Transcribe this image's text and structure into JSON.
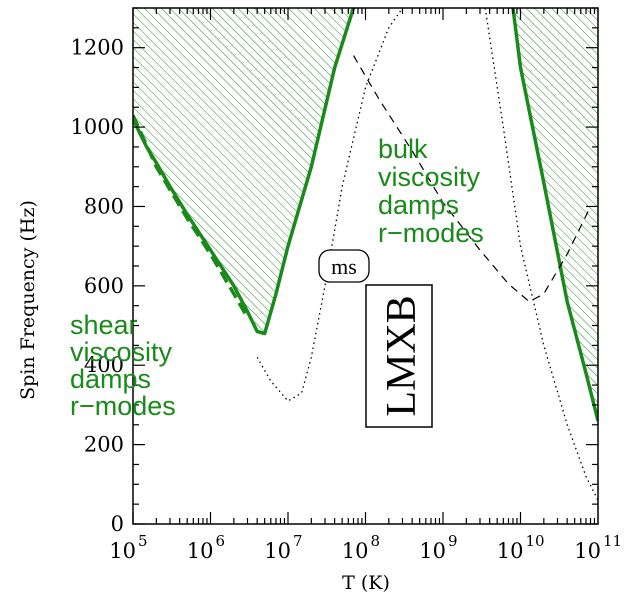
{
  "chart_data": {
    "type": "line",
    "xlabel": "T (K)",
    "ylabel": "Spin Frequency (Hz)",
    "x_scale": "log",
    "xlim": [
      100000.0,
      100000000000.0
    ],
    "ylim": [
      0,
      1300
    ],
    "x_ticks": [
      {
        "base": "10",
        "exp": "5",
        "value": 100000.0
      },
      {
        "base": "10",
        "exp": "6",
        "value": 1000000.0
      },
      {
        "base": "10",
        "exp": "7",
        "value": 10000000.0
      },
      {
        "base": "10",
        "exp": "8",
        "value": 100000000.0
      },
      {
        "base": "10",
        "exp": "9",
        "value": 1000000000.0
      },
      {
        "base": "10",
        "exp": "10",
        "value": 10000000000.0
      },
      {
        "base": "10",
        "exp": "11",
        "value": 100000000000.0
      }
    ],
    "y_ticks": [
      0,
      200,
      400,
      600,
      800,
      1000,
      1200
    ],
    "series": [
      {
        "style": "solid-thick-green",
        "x": [
          100000.0,
          150000.0,
          200000.0,
          300000.0,
          500000.0,
          1000000.0,
          2000000.0,
          3000000.0,
          4000000.0,
          5000000.0,
          7000000.0,
          10000000.0,
          20000000.0,
          40000000.0,
          70000000.0
        ],
        "y": [
          1020,
          950,
          910,
          850,
          780,
          690,
          600,
          535,
          485,
          480,
          580,
          700,
          900,
          1150,
          1300
        ]
      },
      {
        "style": "dashed-thick-green",
        "x": [
          100000.0,
          200000.0,
          500000.0,
          1000000.0,
          2000000.0,
          3000000.0
        ],
        "y": [
          1030,
          900,
          770,
          680,
          580,
          520
        ]
      },
      {
        "style": "solid-thick-green",
        "x": [
          8000000000.0,
          10000000000.0,
          20000000000.0,
          40000000000.0,
          70000000000.0,
          100000000000.0
        ],
        "y": [
          1300,
          1150,
          860,
          560,
          380,
          260
        ]
      },
      {
        "style": "dashed-thin-black",
        "x": [
          70000000.0,
          150000000.0,
          400000000.0,
          1000000000.0,
          3000000000.0,
          7000000000.0,
          13000000000.0,
          20000000000.0,
          40000000000.0,
          80000000000.0
        ],
        "y": [
          1180,
          1070,
          940,
          810,
          690,
          605,
          560,
          580,
          680,
          800
        ]
      },
      {
        "style": "dotted-thin-black",
        "x": [
          4000000.0,
          6000000.0,
          10000000.0,
          15000000.0,
          20000000.0,
          30000000.0,
          50000000.0,
          100000000.0,
          200000000.0,
          300000000.0
        ],
        "y": [
          420,
          360,
          310,
          330,
          420,
          600,
          850,
          1100,
          1250,
          1300
        ]
      },
      {
        "style": "dotted-thin-black",
        "x": [
          3500000000.0,
          6000000000.0,
          10000000000.0,
          20000000000.0,
          40000000000.0,
          70000000000.0,
          100000000000.0
        ],
        "y": [
          1300,
          1000,
          700,
          450,
          250,
          120,
          60
        ]
      }
    ],
    "shaded_regions": [
      {
        "description_key": "left-hatch",
        "color": "#2a8f2a"
      },
      {
        "description_key": "right-hatch",
        "color": "#2a8f2a"
      }
    ],
    "annotations": {
      "bulk": [
        "bulk",
        "viscosity",
        "damps",
        "r−modes"
      ],
      "shear": [
        "shear",
        "viscosity",
        "damps",
        "r−modes"
      ],
      "ms": "ms",
      "lmxb": "LMXB"
    },
    "colors": {
      "green": "#1a8a1a",
      "hatch": "#2a8f2a",
      "black": "#000000"
    }
  }
}
